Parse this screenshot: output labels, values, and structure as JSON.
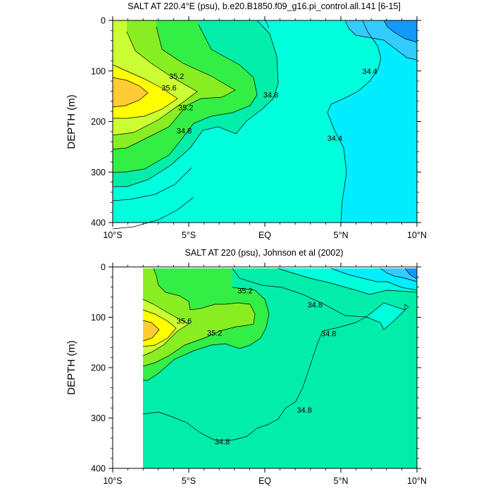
{
  "chart_data": [
    {
      "type": "contour",
      "title": "SALT AT 220.4°E (psu), b.e20.B1850.f09_g16.pi_control.all.141 [6-15]",
      "ylabel": "DEPTH (m)",
      "xlabel": "",
      "x_tick_labels": [
        "10°S",
        "5°S",
        "EQ",
        "5°N",
        "10°N"
      ],
      "x_tick_values": [
        -10,
        -5,
        0,
        5,
        10
      ],
      "y_tick_labels": [
        "0",
        "100",
        "200",
        "300",
        "400"
      ],
      "y_tick_values": [
        0,
        100,
        200,
        300,
        400
      ],
      "xlim": [
        -10,
        10
      ],
      "ylim": [
        400,
        0
      ],
      "contour_labels": [
        {
          "text": "35.6",
          "lat": -6.3,
          "depth": 133
        },
        {
          "text": "35.2",
          "lat": -5.8,
          "depth": 110
        },
        {
          "text": "35.2",
          "lat": -5.2,
          "depth": 172
        },
        {
          "text": "34.8",
          "lat": -5.3,
          "depth": 218
        },
        {
          "text": "34.8",
          "lat": 0.4,
          "depth": 147
        },
        {
          "text": "34.4",
          "lat": 6.9,
          "depth": 100
        },
        {
          "text": "34.4",
          "lat": 4.6,
          "depth": 233
        }
      ],
      "levels": [
        {
          "value_min": 36.0,
          "color": "#ffcc33"
        },
        {
          "value_min": 35.6,
          "color": "#ffff00"
        },
        {
          "value_min": 35.4,
          "color": "#ccff33"
        },
        {
          "value_min": 35.2,
          "color": "#88ee22"
        },
        {
          "value_min": 35.0,
          "color": "#33ee44"
        },
        {
          "value_min": 34.8,
          "color": "#00eeaa"
        },
        {
          "value_min": 34.6,
          "color": "#00ffdd"
        },
        {
          "value_min": 34.4,
          "color": "#00eeff"
        },
        {
          "value_min": 34.2,
          "color": "#33ccff"
        },
        {
          "value_min": 34.0,
          "color": "#1199ff"
        }
      ]
    },
    {
      "type": "contour",
      "title": "SALT AT 220 (psu), Johnson et al (2002)",
      "ylabel": "DEPTH (m)",
      "xlabel": "",
      "x_tick_labels": [
        "10°S",
        "5°S",
        "EQ",
        "5°N",
        "10°N"
      ],
      "x_tick_values": [
        -10,
        -5,
        0,
        5,
        10
      ],
      "y_tick_labels": [
        "0",
        "100",
        "200",
        "300",
        "400"
      ],
      "y_tick_values": [
        0,
        100,
        200,
        300,
        400
      ],
      "xlim": [
        -10,
        10
      ],
      "ylim": [
        400,
        0
      ],
      "data_lat_range": [
        -8,
        10
      ],
      "contour_labels": [
        {
          "text": "35.6",
          "lat": -5.3,
          "depth": 107
        },
        {
          "text": "35.2",
          "lat": -1.3,
          "depth": 47
        },
        {
          "text": "35.2",
          "lat": -3.3,
          "depth": 131
        },
        {
          "text": "34.8",
          "lat": 3.3,
          "depth": 75
        },
        {
          "text": "34.8",
          "lat": 4.2,
          "depth": 132
        },
        {
          "text": "34.8",
          "lat": 2.6,
          "depth": 284
        },
        {
          "text": "34.8",
          "lat": -2.8,
          "depth": 347
        }
      ],
      "levels": [
        {
          "value_min": 36.0,
          "color": "#ffcc33"
        },
        {
          "value_min": 35.6,
          "color": "#ffff00"
        },
        {
          "value_min": 35.4,
          "color": "#ccff33"
        },
        {
          "value_min": 35.2,
          "color": "#88ee22"
        },
        {
          "value_min": 35.0,
          "color": "#33ee44"
        },
        {
          "value_min": 34.8,
          "color": "#00eeaa"
        },
        {
          "value_min": 34.6,
          "color": "#00ffdd"
        },
        {
          "value_min": 34.4,
          "color": "#00eeff"
        },
        {
          "value_min": 34.2,
          "color": "#33ccff"
        },
        {
          "value_min": 34.0,
          "color": "#1199ff"
        }
      ]
    }
  ]
}
